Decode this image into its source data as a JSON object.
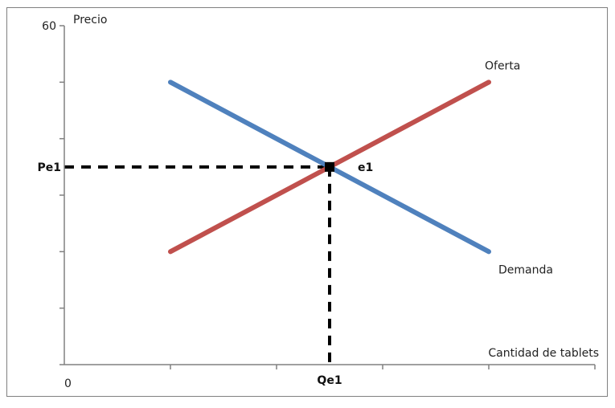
{
  "chart_data": {
    "type": "line",
    "ylabel": "Precio",
    "xlabel": "Cantidad de tablets",
    "y_tick_labels": {
      "top": "60",
      "origin": "0"
    },
    "ylim": [
      0,
      60
    ],
    "xlim": [
      0,
      5
    ],
    "grid": false,
    "series": [
      {
        "name": "Oferta",
        "color": "#c0504d",
        "x": [
          1,
          4
        ],
        "y": [
          20,
          50
        ]
      },
      {
        "name": "Demanda",
        "color": "#4f81bd",
        "x": [
          1,
          4
        ],
        "y": [
          50,
          20
        ]
      }
    ],
    "equilibrium": {
      "label": "e1",
      "x": 2.5,
      "y": 35,
      "price_label": "Pe1",
      "quantity_label": "Qe1"
    }
  }
}
